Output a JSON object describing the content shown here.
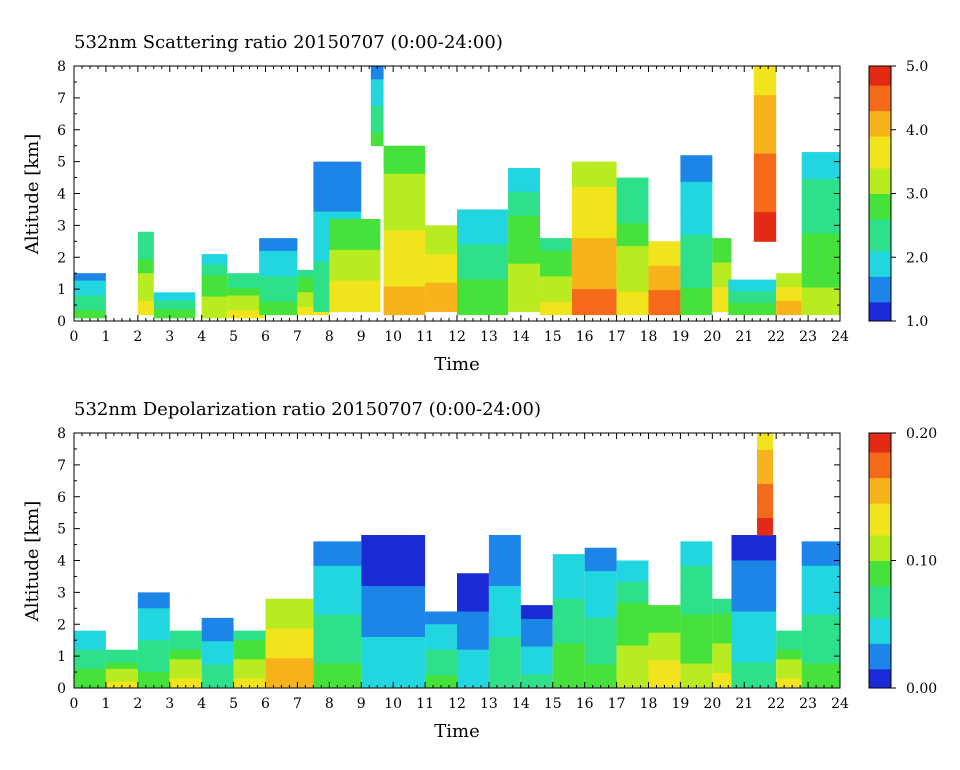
{
  "chart_data": [
    {
      "type": "heatmap",
      "title": "532nm Scattering ratio  20150707 (0:00-24:00)",
      "xlabel": "Time",
      "ylabel": "Altitude [km]",
      "xlim": [
        0,
        24
      ],
      "ylim": [
        0,
        8
      ],
      "x_ticks": [
        "0",
        "1",
        "2",
        "3",
        "4",
        "5",
        "6",
        "7",
        "8",
        "9",
        "10",
        "11",
        "12",
        "13",
        "14",
        "15",
        "16",
        "17",
        "18",
        "19",
        "20",
        "21",
        "22",
        "23",
        "24"
      ],
      "y_ticks": [
        "0",
        "1",
        "2",
        "3",
        "4",
        "5",
        "6",
        "7",
        "8"
      ],
      "colorbar": {
        "min": 1.0,
        "max": 5.0,
        "ticks": [
          "1.0",
          "2.0",
          "3.0",
          "4.0",
          "5.0"
        ]
      },
      "colormap": [
        "#1a2bd6",
        "#1d84e8",
        "#22d6e0",
        "#2fe08a",
        "#46e23b",
        "#b8ec20",
        "#f2e41c",
        "#f7b21c",
        "#f46a1a",
        "#e22a14"
      ],
      "clouds": [
        {
          "x0": 0.0,
          "x1": 1.0,
          "y0": 0.1,
          "y1": 1.5,
          "level": 0.3
        },
        {
          "x0": 2.0,
          "x1": 2.5,
          "y0": 0.2,
          "y1": 2.8,
          "level": 0.5
        },
        {
          "x0": 2.5,
          "x1": 3.8,
          "y0": 0.1,
          "y1": 0.9,
          "level": 0.35
        },
        {
          "x0": 4.0,
          "x1": 4.8,
          "y0": 0.1,
          "y1": 2.1,
          "level": 0.45
        },
        {
          "x0": 4.8,
          "x1": 6.0,
          "y0": 0.1,
          "y1": 1.5,
          "level": 0.5
        },
        {
          "x0": 5.8,
          "x1": 7.0,
          "y0": 0.2,
          "y1": 2.6,
          "level": 0.3
        },
        {
          "x0": 7.0,
          "x1": 8.0,
          "y0": 0.2,
          "y1": 1.6,
          "level": 0.55
        },
        {
          "x0": 7.5,
          "x1": 9.0,
          "y0": 0.3,
          "y1": 5.0,
          "level": 0.25
        },
        {
          "x0": 8.0,
          "x1": 9.6,
          "y0": 0.3,
          "y1": 3.2,
          "level": 0.6
        },
        {
          "x0": 9.3,
          "x1": 9.7,
          "y0": 5.5,
          "y1": 8.0,
          "level": 0.3
        },
        {
          "x0": 9.7,
          "x1": 11.0,
          "y0": 0.2,
          "y1": 5.5,
          "level": 0.65
        },
        {
          "x0": 11.0,
          "x1": 12.0,
          "y0": 0.3,
          "y1": 3.0,
          "level": 0.7
        },
        {
          "x0": 12.0,
          "x1": 13.6,
          "y0": 0.2,
          "y1": 3.5,
          "level": 0.35
        },
        {
          "x0": 13.6,
          "x1": 14.6,
          "y0": 0.3,
          "y1": 4.8,
          "level": 0.45
        },
        {
          "x0": 14.6,
          "x1": 15.6,
          "y0": 0.2,
          "y1": 2.6,
          "level": 0.55
        },
        {
          "x0": 15.6,
          "x1": 17.0,
          "y0": 0.2,
          "y1": 5.0,
          "level": 0.75
        },
        {
          "x0": 17.0,
          "x1": 18.0,
          "y0": 0.2,
          "y1": 4.5,
          "level": 0.5
        },
        {
          "x0": 18.0,
          "x1": 19.0,
          "y0": 0.2,
          "y1": 2.5,
          "level": 0.8
        },
        {
          "x0": 19.0,
          "x1": 20.0,
          "y0": 0.2,
          "y1": 5.2,
          "level": 0.3
        },
        {
          "x0": 20.0,
          "x1": 20.6,
          "y0": 0.3,
          "y1": 2.6,
          "level": 0.6
        },
        {
          "x0": 20.5,
          "x1": 22.0,
          "y0": 0.2,
          "y1": 1.3,
          "level": 0.35
        },
        {
          "x0": 21.3,
          "x1": 22.0,
          "y0": 2.5,
          "y1": 8.0,
          "level": 0.85
        },
        {
          "x0": 22.0,
          "x1": 22.8,
          "y0": 0.2,
          "y1": 1.5,
          "level": 0.7
        },
        {
          "x0": 22.8,
          "x1": 24.0,
          "y0": 0.2,
          "y1": 5.3,
          "level": 0.4
        }
      ]
    },
    {
      "type": "heatmap",
      "title": "532nm Depolarization ratio  20150707 (0:00-24:00)",
      "xlabel": "Time",
      "ylabel": "Altitude [km]",
      "xlim": [
        0,
        24
      ],
      "ylim": [
        0,
        8
      ],
      "x_ticks": [
        "0",
        "1",
        "2",
        "3",
        "4",
        "5",
        "6",
        "7",
        "8",
        "9",
        "10",
        "11",
        "12",
        "13",
        "14",
        "15",
        "16",
        "17",
        "18",
        "19",
        "20",
        "21",
        "22",
        "23",
        "24"
      ],
      "y_ticks": [
        "0",
        "1",
        "2",
        "3",
        "4",
        "5",
        "6",
        "7",
        "8"
      ],
      "colorbar": {
        "min": 0.0,
        "max": 0.2,
        "ticks": [
          "0.00",
          "0.10",
          "0.20"
        ]
      },
      "colormap": [
        "#1a2bd6",
        "#1d84e8",
        "#22d6e0",
        "#2fe08a",
        "#46e23b",
        "#b8ec20",
        "#f2e41c",
        "#f7b21c",
        "#f46a1a",
        "#e22a14"
      ],
      "clouds": [
        {
          "x0": 0.0,
          "x1": 1.0,
          "y0": 0.0,
          "y1": 1.8,
          "level": 0.35
        },
        {
          "x0": 1.0,
          "x1": 2.0,
          "y0": 0.0,
          "y1": 1.2,
          "level": 0.5
        },
        {
          "x0": 2.0,
          "x1": 3.0,
          "y0": 0.0,
          "y1": 3.0,
          "level": 0.3
        },
        {
          "x0": 3.0,
          "x1": 4.0,
          "y0": 0.0,
          "y1": 1.8,
          "level": 0.5
        },
        {
          "x0": 4.0,
          "x1": 5.0,
          "y0": 0.0,
          "y1": 2.2,
          "level": 0.25
        },
        {
          "x0": 5.0,
          "x1": 6.0,
          "y0": 0.0,
          "y1": 1.8,
          "level": 0.55
        },
        {
          "x0": 6.0,
          "x1": 7.5,
          "y0": 0.0,
          "y1": 2.8,
          "level": 0.7
        },
        {
          "x0": 7.5,
          "x1": 9.0,
          "y0": 0.0,
          "y1": 4.6,
          "level": 0.3
        },
        {
          "x0": 9.0,
          "x1": 11.0,
          "y0": 0.0,
          "y1": 4.8,
          "level": 0.15
        },
        {
          "x0": 11.0,
          "x1": 12.0,
          "y0": 0.0,
          "y1": 2.4,
          "level": 0.3
        },
        {
          "x0": 12.0,
          "x1": 13.0,
          "y0": 0.0,
          "y1": 3.6,
          "level": 0.15
        },
        {
          "x0": 13.0,
          "x1": 14.0,
          "y0": 0.0,
          "y1": 4.8,
          "level": 0.25
        },
        {
          "x0": 14.0,
          "x1": 15.0,
          "y0": 0.0,
          "y1": 2.6,
          "level": 0.2
        },
        {
          "x0": 15.0,
          "x1": 16.0,
          "y0": 0.0,
          "y1": 4.2,
          "level": 0.35
        },
        {
          "x0": 16.0,
          "x1": 17.0,
          "y0": 0.0,
          "y1": 4.4,
          "level": 0.3
        },
        {
          "x0": 17.0,
          "x1": 18.0,
          "y0": 0.0,
          "y1": 4.0,
          "level": 0.45
        },
        {
          "x0": 18.0,
          "x1": 19.0,
          "y0": 0.0,
          "y1": 2.6,
          "level": 0.6
        },
        {
          "x0": 19.0,
          "x1": 20.0,
          "y0": 0.0,
          "y1": 4.6,
          "level": 0.4
        },
        {
          "x0": 20.0,
          "x1": 20.6,
          "y0": 0.0,
          "y1": 2.8,
          "level": 0.55
        },
        {
          "x0": 20.6,
          "x1": 22.0,
          "y0": 0.0,
          "y1": 4.8,
          "level": 0.2
        },
        {
          "x0": 21.4,
          "x1": 21.9,
          "y0": 4.8,
          "y1": 8.0,
          "level": 0.85
        },
        {
          "x0": 22.0,
          "x1": 22.8,
          "y0": 0.0,
          "y1": 1.8,
          "level": 0.5
        },
        {
          "x0": 22.8,
          "x1": 24.0,
          "y0": 0.0,
          "y1": 4.6,
          "level": 0.3
        }
      ]
    }
  ]
}
